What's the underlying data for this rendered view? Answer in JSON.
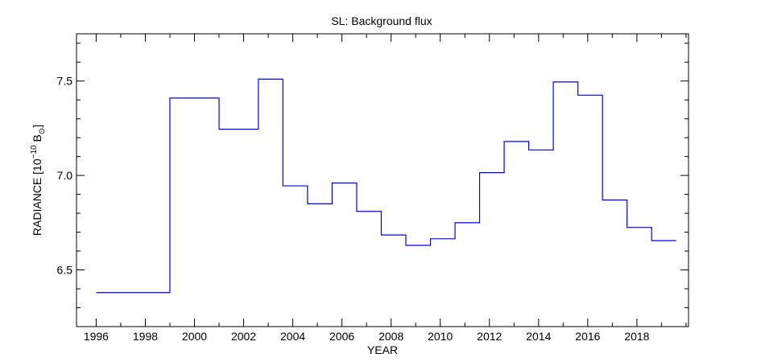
{
  "chart_data": {
    "type": "line",
    "step": true,
    "title": "SL: Background flux",
    "xlabel": "YEAR",
    "ylabel": {
      "prefix": "RADIANCE [10",
      "exponent": "−10",
      "unit": "B",
      "sun_symbol": "⊙",
      "suffix": "]"
    },
    "xlim": [
      1995.2,
      2020.1
    ],
    "ylim": [
      6.2,
      7.75
    ],
    "x_ticks": [
      1996,
      1998,
      2000,
      2002,
      2004,
      2006,
      2008,
      2010,
      2012,
      2014,
      2016,
      2018
    ],
    "x_tick_labels": [
      "1996",
      "1998",
      "2000",
      "2002",
      "2004",
      "2006",
      "2008",
      "2010",
      "2012",
      "2014",
      "2016",
      "2018"
    ],
    "y_ticks": [
      6.5,
      7.0,
      7.5
    ],
    "y_tick_labels": [
      "6.5",
      "7.0",
      "7.5"
    ],
    "line_color": "#0000ff",
    "segments": [
      {
        "x_start": 1996.0,
        "x_end": 1999.0,
        "value": 6.38
      },
      {
        "x_start": 1999.0,
        "x_end": 2001.0,
        "value": 7.41
      },
      {
        "x_start": 2001.0,
        "x_end": 2002.6,
        "value": 7.245
      },
      {
        "x_start": 2002.6,
        "x_end": 2003.6,
        "value": 7.51
      },
      {
        "x_start": 2003.6,
        "x_end": 2004.6,
        "value": 6.945
      },
      {
        "x_start": 2004.6,
        "x_end": 2005.6,
        "value": 6.85
      },
      {
        "x_start": 2005.6,
        "x_end": 2006.6,
        "value": 6.96
      },
      {
        "x_start": 2006.6,
        "x_end": 2007.6,
        "value": 6.81
      },
      {
        "x_start": 2007.6,
        "x_end": 2008.6,
        "value": 6.685
      },
      {
        "x_start": 2008.6,
        "x_end": 2009.6,
        "value": 6.63
      },
      {
        "x_start": 2009.6,
        "x_end": 2010.6,
        "value": 6.665
      },
      {
        "x_start": 2010.6,
        "x_end": 2011.6,
        "value": 6.75
      },
      {
        "x_start": 2011.6,
        "x_end": 2012.6,
        "value": 7.015
      },
      {
        "x_start": 2012.6,
        "x_end": 2013.6,
        "value": 7.18
      },
      {
        "x_start": 2013.6,
        "x_end": 2014.6,
        "value": 7.135
      },
      {
        "x_start": 2014.6,
        "x_end": 2015.6,
        "value": 7.495
      },
      {
        "x_start": 2015.6,
        "x_end": 2016.6,
        "value": 7.425
      },
      {
        "x_start": 2016.6,
        "x_end": 2017.6,
        "value": 6.87
      },
      {
        "x_start": 2017.6,
        "x_end": 2018.6,
        "value": 6.725
      },
      {
        "x_start": 2018.6,
        "x_end": 2019.6,
        "value": 6.655
      }
    ],
    "grid": false,
    "legend": "none"
  }
}
